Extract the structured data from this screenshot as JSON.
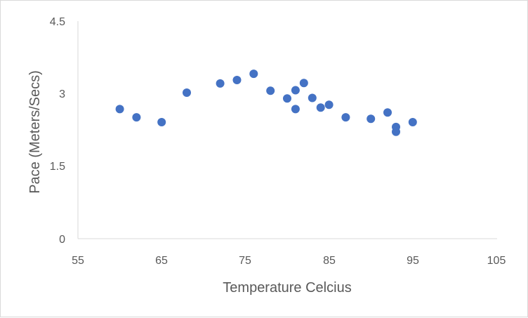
{
  "chart_data": {
    "type": "scatter",
    "title": "",
    "xlabel": "Temperature Celcius",
    "ylabel": "Pace (Meters/Secs)",
    "xlim": [
      55,
      105
    ],
    "ylim": [
      0,
      4.5
    ],
    "x_ticks": [
      "55",
      "65",
      "75",
      "85",
      "95",
      "105"
    ],
    "y_ticks": [
      "0",
      "1.5",
      "3",
      "4.5"
    ],
    "grid": false,
    "legend": "none",
    "marker_color": "#4472C4",
    "axis_color": "#d9d9d9",
    "text_color": "#595959",
    "series": [
      {
        "x": [
          60,
          62,
          65,
          68,
          72,
          74,
          76,
          78,
          80,
          81,
          81,
          82,
          83,
          84,
          85,
          87,
          90,
          92,
          93,
          93,
          95
        ],
        "y": [
          2.68,
          2.51,
          2.41,
          3.02,
          3.21,
          3.28,
          3.41,
          3.06,
          2.9,
          3.07,
          2.68,
          3.22,
          2.91,
          2.71,
          2.77,
          2.51,
          2.48,
          2.61,
          2.31,
          2.21,
          2.41
        ]
      }
    ]
  }
}
